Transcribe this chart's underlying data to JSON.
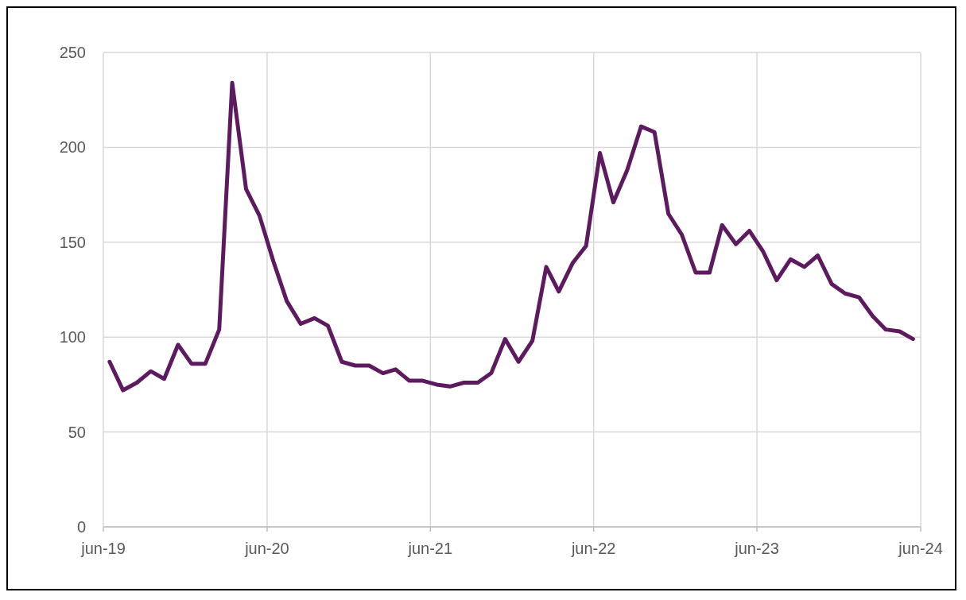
{
  "chart_data": {
    "type": "line",
    "x": [
      "2019-06-15",
      "2019-07-15",
      "2019-08-15",
      "2019-09-15",
      "2019-10-15",
      "2019-11-15",
      "2019-12-15",
      "2020-01-15",
      "2020-02-15",
      "2020-03-15",
      "2020-04-15",
      "2020-05-15",
      "2020-06-15",
      "2020-07-15",
      "2020-08-15",
      "2020-09-15",
      "2020-10-15",
      "2020-11-15",
      "2020-12-15",
      "2021-01-15",
      "2021-02-15",
      "2021-03-15",
      "2021-04-15",
      "2021-05-15",
      "2021-06-15",
      "2021-07-15",
      "2021-08-15",
      "2021-09-15",
      "2021-10-15",
      "2021-11-15",
      "2021-12-15",
      "2022-01-15",
      "2022-02-15",
      "2022-03-15",
      "2022-04-15",
      "2022-05-15",
      "2022-06-15",
      "2022-07-15",
      "2022-08-15",
      "2022-09-15",
      "2022-10-15",
      "2022-11-15",
      "2022-12-15",
      "2023-01-15",
      "2023-02-15",
      "2023-03-15",
      "2023-04-15",
      "2023-05-15",
      "2023-06-15",
      "2023-07-15",
      "2023-08-15",
      "2023-09-15",
      "2023-10-15",
      "2023-11-15",
      "2023-12-15",
      "2024-01-15",
      "2024-02-15",
      "2024-03-15",
      "2024-04-15",
      "2024-05-15"
    ],
    "series": [
      {
        "color": "#5e1a5f",
        "values": [
          87,
          72,
          76,
          82,
          78,
          96,
          86,
          86,
          104,
          234,
          178,
          164,
          140,
          119,
          107,
          110,
          106,
          87,
          85,
          85,
          81,
          83,
          77,
          77,
          75,
          74,
          76,
          76,
          81,
          99,
          87,
          98,
          137,
          124,
          139,
          148,
          197,
          171,
          188,
          211,
          208,
          165,
          154,
          134,
          134,
          159,
          149,
          156,
          145,
          130,
          141,
          137,
          143,
          128,
          123,
          121,
          111,
          104,
          103,
          99
        ]
      }
    ],
    "xlim": [
      "2019-06-01",
      "2024-06-01"
    ],
    "xticks": [
      {
        "value": "2019-06-01",
        "label": "jun-19"
      },
      {
        "value": "2020-06-01",
        "label": "jun-20"
      },
      {
        "value": "2021-06-01",
        "label": "jun-21"
      },
      {
        "value": "2022-06-01",
        "label": "jun-22"
      },
      {
        "value": "2023-06-01",
        "label": "jun-23"
      },
      {
        "value": "2024-06-01",
        "label": "jun-24"
      }
    ],
    "ylim": [
      0,
      250
    ],
    "yticks": [
      0,
      50,
      100,
      150,
      200,
      250
    ],
    "grid": true,
    "marker": "none",
    "line_style": "solid"
  }
}
